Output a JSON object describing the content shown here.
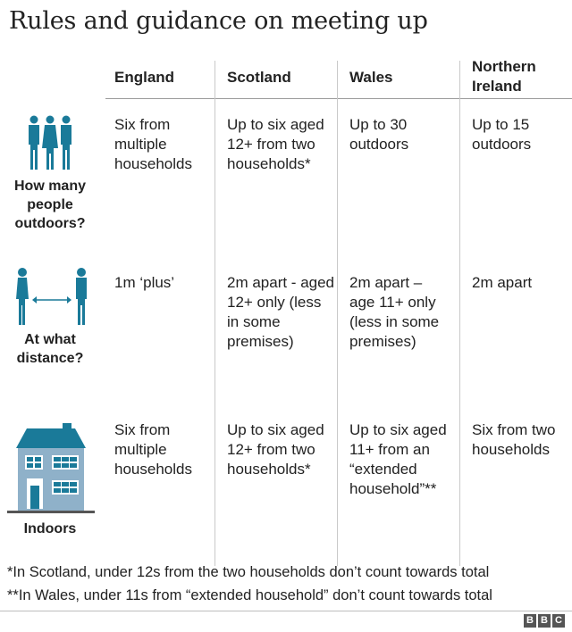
{
  "title": "Rules and guidance on meeting up",
  "columns": [
    "England",
    "Scotland",
    "Wales",
    "Northern\nIreland"
  ],
  "rows": [
    {
      "label": "How many people outdoors?",
      "icon": "people-group-icon",
      "cells": [
        "Six from multiple households",
        "Up to six aged 12+ from two households*",
        "Up to 30 outdoors",
        "Up to 15 outdoors"
      ]
    },
    {
      "label": "At what distance?",
      "icon": "social-distance-icon",
      "cells": [
        "1m ‘plus’",
        "2m apart - aged 12+ only (less in some premises)",
        "2m apart – age 11+ only (less in some premises)",
        "2m apart"
      ]
    },
    {
      "label": "Indoors",
      "icon": "house-icon",
      "cells": [
        "Six from multiple households",
        "Up to six aged 12+ from two households*",
        "Up to six aged 11+ from an “extended household”**",
        "Six from two households"
      ]
    }
  ],
  "footnotes": [
    "*In Scotland, under 12s from the two households don’t count towards total",
    "**In Wales, under 11s from “extended household” don’t count towards total"
  ],
  "logo": "BBC",
  "colors": {
    "icon_teal": "#1a7a99",
    "house_blue": "#8fb1c9",
    "door_teal": "#1a7a99",
    "text": "#222222"
  }
}
